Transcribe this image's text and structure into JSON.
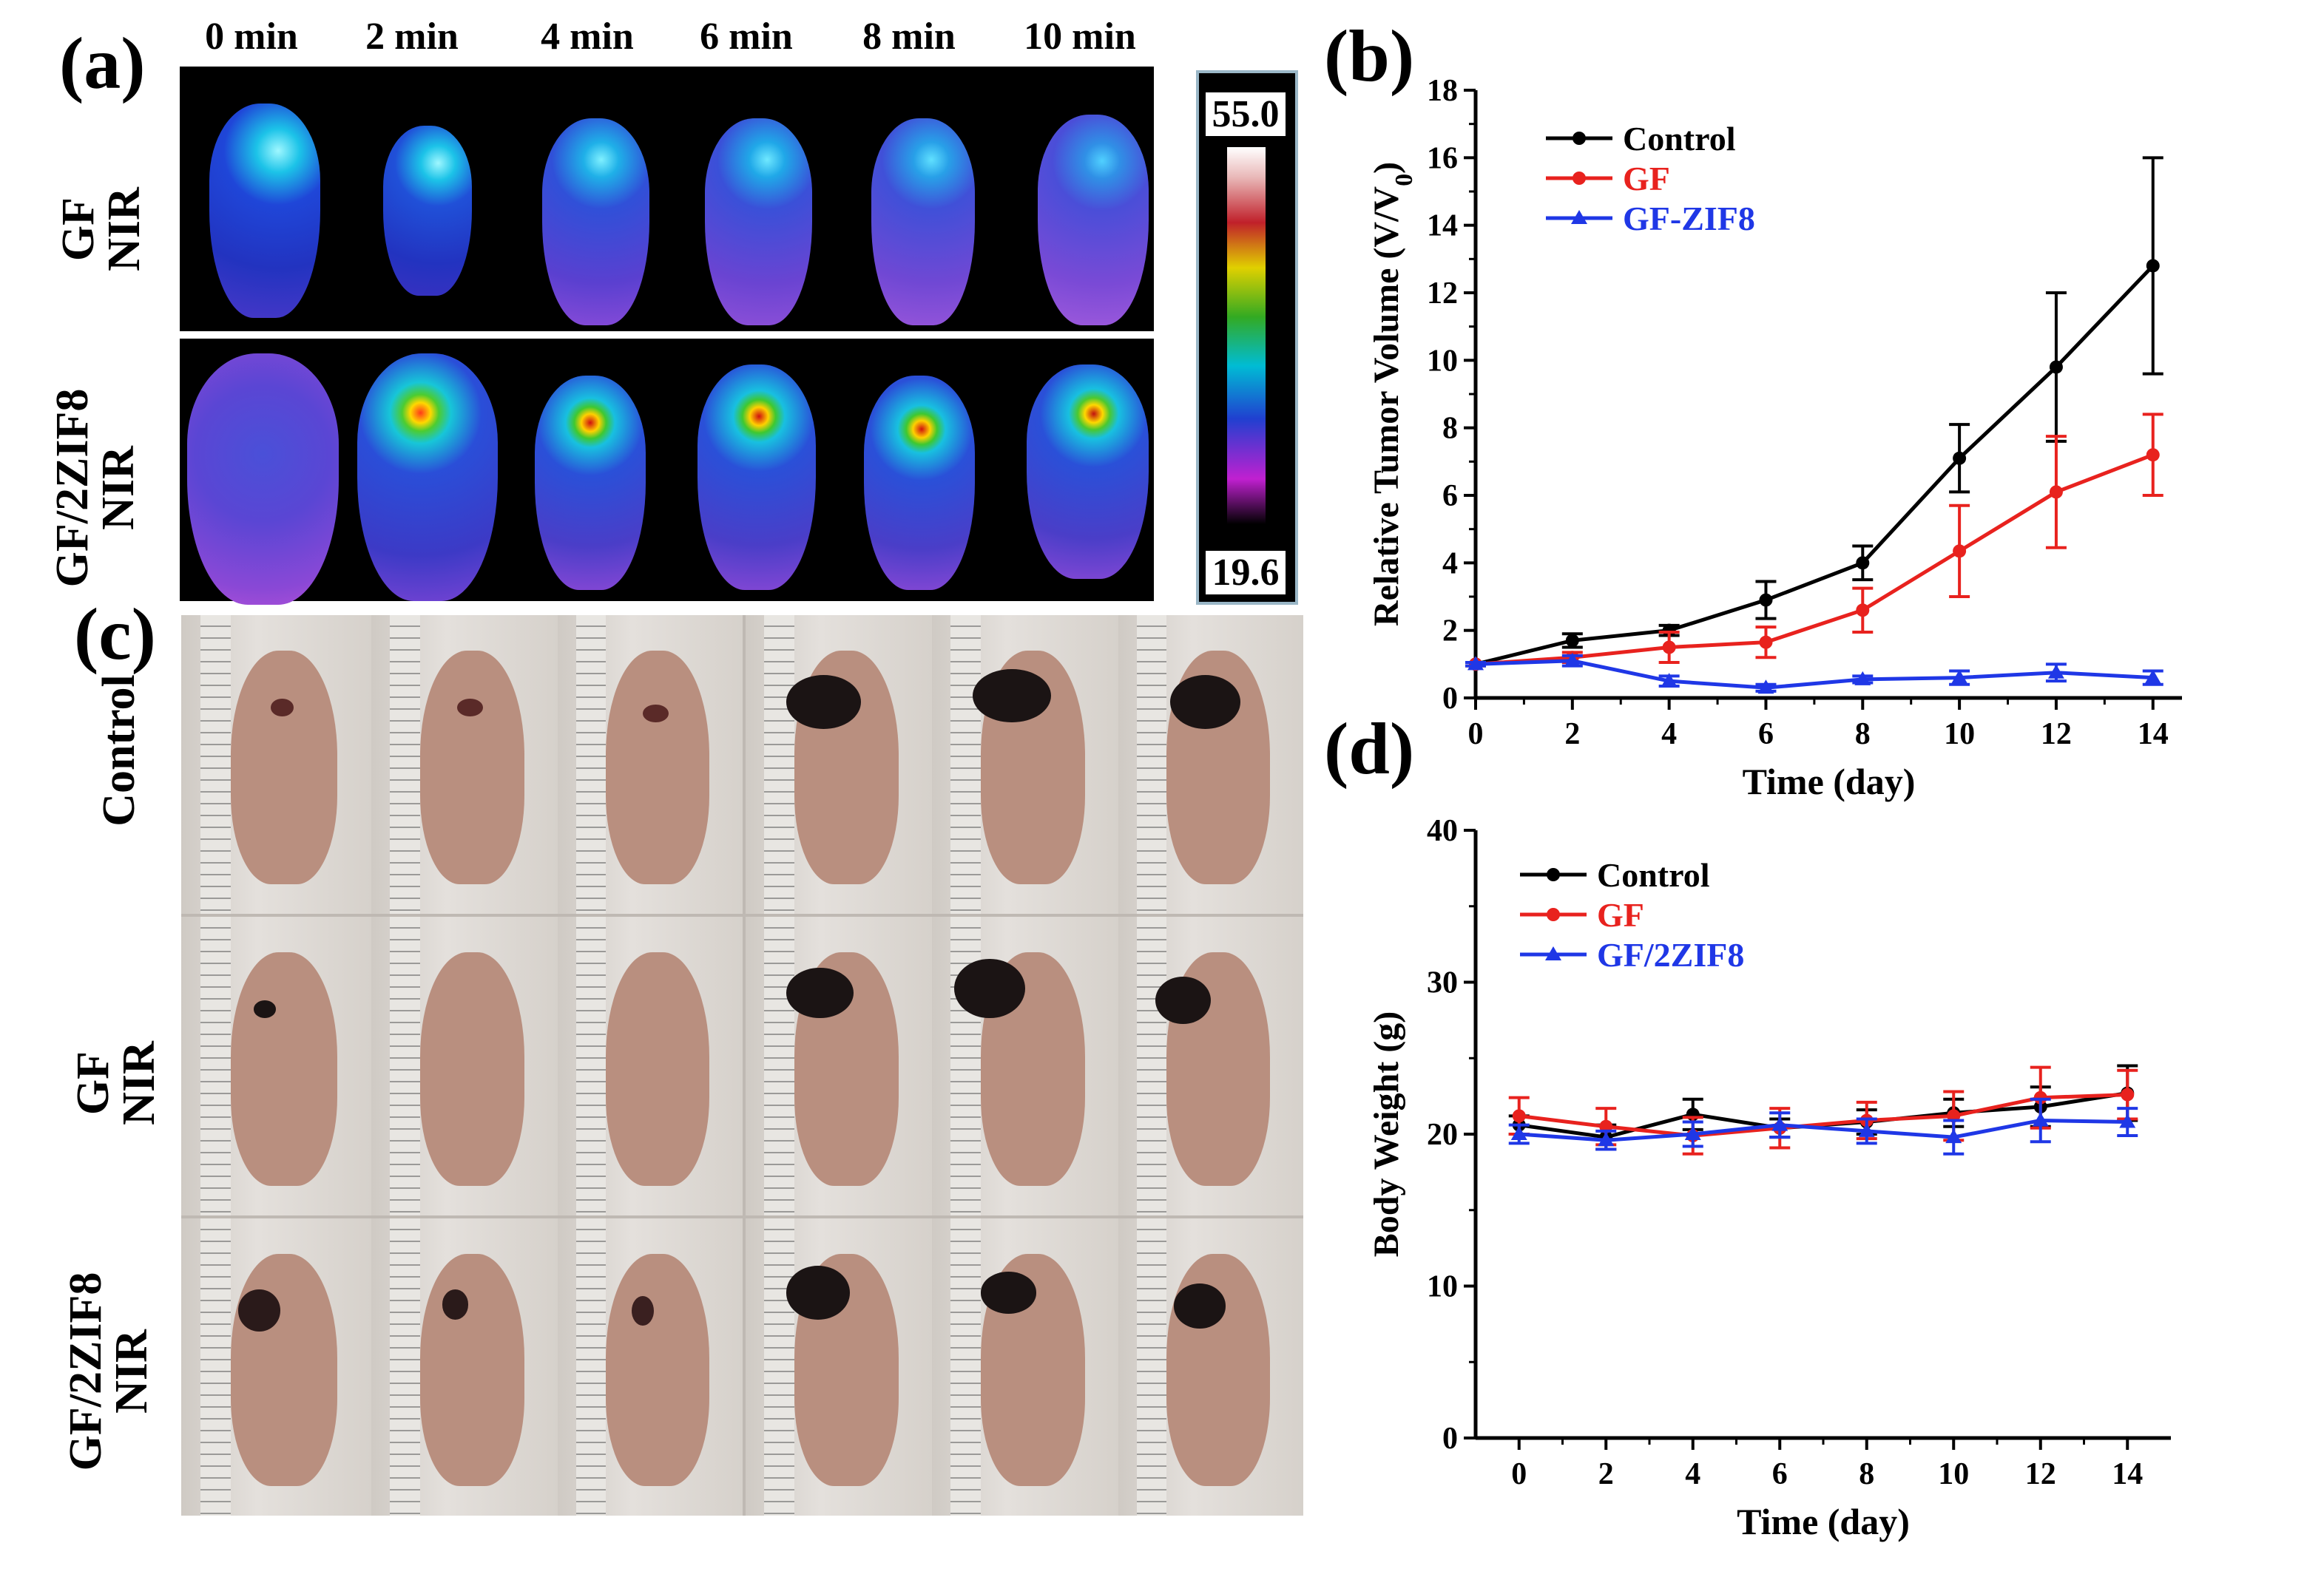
{
  "panels": {
    "a_label": "(a)",
    "b_label": "(b)",
    "c_label": "(c)",
    "d_label": "(d)"
  },
  "panel_a": {
    "time_headers": [
      "0 min",
      "2 min",
      "4 min",
      "6 min",
      "8 min",
      "10 min"
    ],
    "row_labels": [
      {
        "line1": "GF",
        "line2": "NIR"
      },
      {
        "line1": "GF/2ZIF8",
        "line2": "NIR"
      }
    ],
    "colorbar_max": "55.0",
    "colorbar_min": "19.6"
  },
  "panel_c": {
    "row_labels": [
      {
        "line1": "Control",
        "line2": ""
      },
      {
        "line1": "GF",
        "line2": "NIR"
      },
      {
        "line1": "GF/2ZIF8",
        "line2": "NIR"
      }
    ]
  },
  "colors": {
    "control": "#000000",
    "gf": "#e8221e",
    "zif": "#1f37e6"
  },
  "chart_data": [
    {
      "id": "b",
      "type": "line",
      "title": "",
      "xlabel": "Time (day)",
      "ylabel": "Relative Tumor Volume (V/V",
      "ylabel_sub": "0",
      "ylabel_close": ")",
      "xlim": [
        0,
        14.6
      ],
      "ylim": [
        0,
        18
      ],
      "xticks": [
        0,
        2,
        4,
        6,
        8,
        10,
        12,
        14
      ],
      "yticks": [
        0,
        2,
        4,
        6,
        8,
        10,
        12,
        14,
        16,
        18
      ],
      "x": [
        0,
        2,
        4,
        6,
        8,
        10,
        12,
        14
      ],
      "series": [
        {
          "name": "Control",
          "color": "#000000",
          "marker": "circle",
          "values": [
            1.0,
            1.7,
            2.0,
            2.9,
            4.0,
            7.1,
            9.8,
            12.8
          ],
          "errors": [
            0.05,
            0.2,
            0.15,
            0.55,
            0.5,
            1.0,
            2.2,
            3.2
          ]
        },
        {
          "name": "GF",
          "color": "#e8221e",
          "marker": "circle",
          "values": [
            1.0,
            1.2,
            1.5,
            1.65,
            2.6,
            4.35,
            6.1,
            7.2
          ],
          "errors": [
            0.05,
            0.15,
            0.45,
            0.45,
            0.65,
            1.35,
            1.65,
            1.2
          ]
        },
        {
          "name": "GF-ZIF8",
          "color": "#1f37e6",
          "marker": "triangle",
          "values": [
            1.0,
            1.1,
            0.5,
            0.3,
            0.55,
            0.6,
            0.75,
            0.6
          ],
          "errors": [
            0.05,
            0.15,
            0.15,
            0.1,
            0.1,
            0.2,
            0.25,
            0.2
          ]
        }
      ],
      "legend_position": "top-left"
    },
    {
      "id": "d",
      "type": "line",
      "title": "",
      "xlabel": "Time (day)",
      "ylabel": "Body Weight (g)",
      "xlim": [
        -1,
        15
      ],
      "ylim": [
        0,
        40
      ],
      "xticks": [
        0,
        2,
        4,
        6,
        8,
        10,
        12,
        14
      ],
      "yticks": [
        0,
        10,
        20,
        30,
        40
      ],
      "x": [
        0,
        2,
        4,
        6,
        8,
        10,
        12,
        14
      ],
      "series": [
        {
          "name": "Control",
          "color": "#000000",
          "marker": "circle",
          "values": [
            20.6,
            19.8,
            21.3,
            20.4,
            20.8,
            21.4,
            21.8,
            22.7
          ],
          "errors": [
            0.6,
            0.8,
            1.0,
            0.6,
            0.8,
            0.9,
            1.3,
            1.8
          ]
        },
        {
          "name": "GF",
          "color": "#e8221e",
          "marker": "circle",
          "values": [
            21.2,
            20.5,
            19.9,
            20.4,
            20.9,
            21.2,
            22.4,
            22.6
          ],
          "errors": [
            1.2,
            1.2,
            1.2,
            1.3,
            1.2,
            1.6,
            2.0,
            1.6
          ]
        },
        {
          "name": "GF/2ZIF8",
          "color": "#1f37e6",
          "marker": "triangle",
          "values": [
            20.0,
            19.6,
            20.0,
            20.6,
            20.2,
            19.8,
            20.9,
            20.8
          ],
          "errors": [
            0.6,
            0.6,
            0.8,
            0.8,
            0.8,
            1.1,
            1.4,
            0.9
          ]
        }
      ],
      "legend_position": "top-left"
    }
  ]
}
